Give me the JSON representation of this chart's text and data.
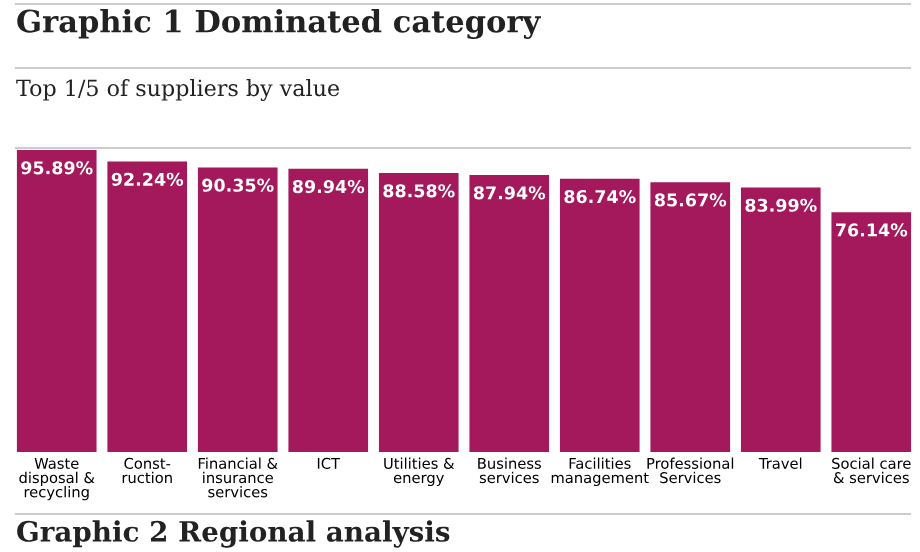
{
  "chart_data": {
    "type": "bar",
    "title": "Graphic 1 Dominated category",
    "subtitle": "Top 1/5 of suppliers by value",
    "categories": [
      "Waste\ndisposal &\nrecycling",
      "Const-\nruction",
      "Financial &\ninsurance\nservices",
      "ICT",
      "Utilities &\nenergy",
      "Business\nservices",
      "Facilities\nmanagement",
      "Professional\nServices",
      "Travel",
      "Social care\n& services"
    ],
    "values": [
      95.89,
      92.24,
      90.35,
      89.94,
      88.58,
      87.94,
      86.74,
      85.67,
      83.99,
      76.14
    ],
    "value_labels": [
      "95.89%",
      "92.24%",
      "90.35%",
      "89.94%",
      "88.58%",
      "87.94%",
      "86.74%",
      "85.67%",
      "83.99%",
      "76.14%"
    ],
    "color": "#a3195b",
    "annotations": [
      "Graphic 2 Regional analysis"
    ]
  }
}
